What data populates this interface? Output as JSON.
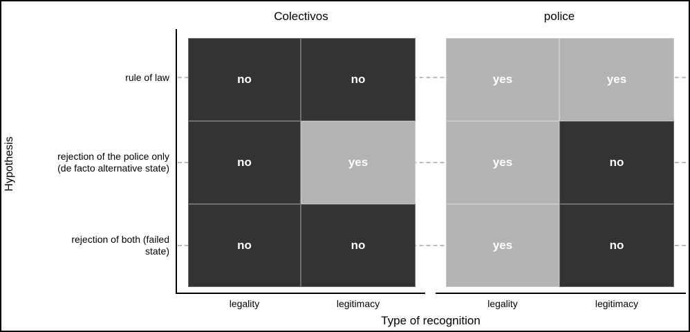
{
  "chart_data": {
    "type": "heatmap",
    "facet_titles": [
      "Colectivos",
      "police"
    ],
    "x_categories": [
      "legality",
      "legitimacy"
    ],
    "y_categories": [
      "rule of law",
      "rejection of the police only (de facto alternative state)",
      "rejection of both (failed state)"
    ],
    "y_tick_labels": [
      "rule of law",
      "rejection of the police only\n(de facto alternative state)",
      "rejection of both (failed\nstate)"
    ],
    "xlabel": "Type of recognition",
    "ylabel": "Hypothesis",
    "series": [
      {
        "name": "Colectivos",
        "values": [
          [
            "no",
            "no"
          ],
          [
            "no",
            "yes"
          ],
          [
            "no",
            "no"
          ]
        ]
      },
      {
        "name": "police",
        "values": [
          [
            "yes",
            "yes"
          ],
          [
            "yes",
            "no"
          ],
          [
            "yes",
            "no"
          ]
        ]
      }
    ],
    "legend": "none",
    "grid": "horizontal dashed lines at each row center",
    "colors": {
      "yes": "#b3b3b3",
      "no": "#333333",
      "cell_text": "#ffffff",
      "grid_dash": "#bdbdbd",
      "axis": "#000000",
      "background": "#ffffff"
    }
  }
}
